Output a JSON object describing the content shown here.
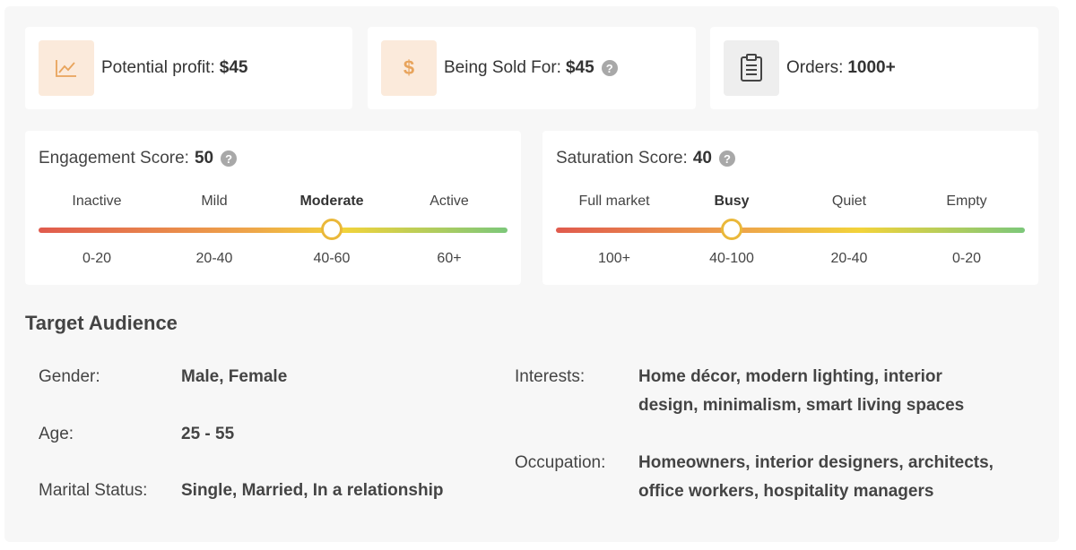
{
  "stats": [
    {
      "label": "Potential profit:",
      "value": "$45",
      "icon": "chart-line-icon"
    },
    {
      "label": "Being Sold For:",
      "value": "$45",
      "icon": "dollar-icon",
      "help": "?"
    },
    {
      "label": "Orders:",
      "value": "1000+",
      "icon": "clipboard-icon"
    }
  ],
  "engagement": {
    "label": "Engagement Score:",
    "value": "50",
    "help": "?",
    "levels": [
      "Inactive",
      "Mild",
      "Moderate",
      "Active"
    ],
    "ranges": [
      "0-20",
      "20-40",
      "40-60",
      "60+"
    ],
    "active_index": 2
  },
  "saturation": {
    "label": "Saturation Score:",
    "value": "40",
    "help": "?",
    "levels": [
      "Full market",
      "Busy",
      "Quiet",
      "Empty"
    ],
    "ranges": [
      "100+",
      "40-100",
      "20-40",
      "0-20"
    ],
    "active_index": 1
  },
  "audience": {
    "title": "Target Audience",
    "gender_label": "Gender:",
    "gender_value": "Male, Female",
    "age_label": "Age:",
    "age_value": "25 - 55",
    "marital_label": "Marital Status:",
    "marital_value": "Single, Married, In a relationship",
    "interests_label": "Interests:",
    "interests_line1": "Home décor, modern lighting, interior",
    "interests_line2": "design, minimalism, smart living spaces",
    "occupation_label": "Occupation:",
    "occupation_line1": "Homeowners, interior designers, architects,",
    "occupation_line2": "office workers, hospitality managers"
  },
  "colors": {
    "accent_orange": "#e8a45c",
    "knob_border": "#eab83a",
    "gradient_red": "#e05a4d",
    "gradient_green": "#7cc77a"
  }
}
